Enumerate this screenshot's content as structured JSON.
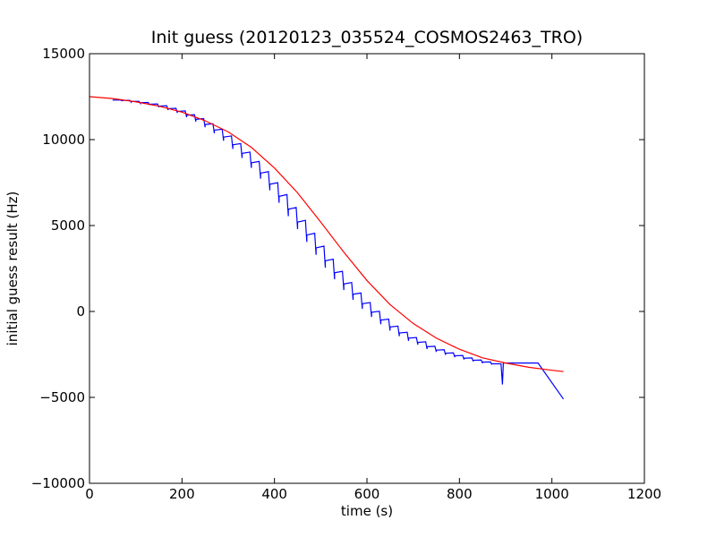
{
  "chart_data": {
    "type": "line",
    "title": "Init guess (20120123_035524_COSMOS2463_TRO)",
    "xlabel": "time (s)",
    "ylabel": "initial guess result (Hz)",
    "xlim": [
      0,
      1200
    ],
    "ylim": [
      -10000,
      15000
    ],
    "xticks": [
      0,
      200,
      400,
      600,
      800,
      1000,
      1200
    ],
    "yticks": [
      -10000,
      -5000,
      0,
      5000,
      10000,
      15000
    ],
    "xtick_labels": [
      "0",
      "200",
      "400",
      "600",
      "800",
      "1000",
      "1200"
    ],
    "ytick_labels": [
      "−10000",
      "−5000",
      "0",
      "5000",
      "10000",
      "15000"
    ],
    "grid": false,
    "series": [
      {
        "color": "#0000ff",
        "style": "sawtooth",
        "x": [
          50,
          70,
          90,
          110,
          130,
          150,
          170,
          190,
          210,
          230,
          250,
          270,
          290,
          310,
          330,
          350,
          370,
          390,
          410,
          430,
          450,
          470,
          490,
          510,
          530,
          550,
          570,
          590,
          610,
          630,
          650,
          670,
          690,
          710,
          730,
          750,
          770,
          790,
          810,
          830,
          850,
          870,
          890,
          893,
          895,
          970,
          1025
        ],
        "y": [
          12300,
          12280,
          12220,
          12150,
          12060,
          11950,
          11800,
          11640,
          11420,
          11180,
          10880,
          10550,
          10150,
          9700,
          9200,
          8650,
          8050,
          7400,
          6700,
          5950,
          5200,
          4450,
          3700,
          2950,
          2250,
          1600,
          1000,
          450,
          -50,
          -500,
          -900,
          -1250,
          -1550,
          -1800,
          -2050,
          -2250,
          -2430,
          -2580,
          -2720,
          -2840,
          -2950,
          -3040,
          -3050,
          -4250,
          -3000,
          -3000,
          -5100
        ]
      },
      {
        "color": "#ff0000",
        "style": "smooth",
        "x": [
          0,
          50,
          100,
          150,
          200,
          250,
          300,
          350,
          400,
          450,
          500,
          550,
          600,
          650,
          700,
          750,
          800,
          850,
          900,
          950,
          1000,
          1025
        ],
        "y": [
          12500,
          12390,
          12200,
          11950,
          11600,
          11100,
          10450,
          9550,
          8350,
          6900,
          5200,
          3450,
          1800,
          400,
          -700,
          -1550,
          -2200,
          -2700,
          -3000,
          -3250,
          -3420,
          -3500
        ]
      }
    ]
  }
}
